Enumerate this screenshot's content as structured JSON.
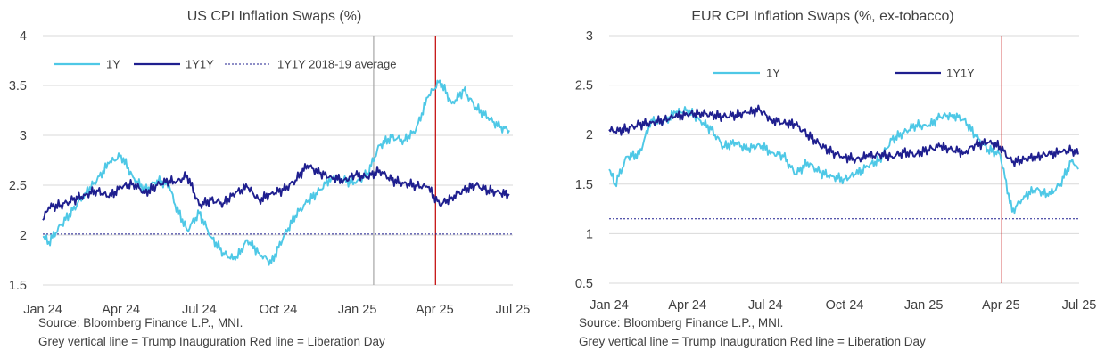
{
  "chart_data": [
    {
      "type": "line",
      "title": "US CPI Inflation Swaps (%)",
      "x_tick_labels": [
        "Jan 24",
        "Apr 24",
        "Jul 24",
        "Oct 24",
        "Jan 25",
        "Apr 25",
        "Jul 25"
      ],
      "y_tick_labels": [
        "1.5",
        "2",
        "2.5",
        "3",
        "3.5",
        "4"
      ],
      "ylim": [
        1.5,
        4
      ],
      "grid": "horizontal",
      "legend_position": "top-left",
      "vertical_lines": [
        {
          "date": "2025-01-20",
          "color": "#a6a6a6"
        },
        {
          "date": "2025-04-02",
          "color": "#c00000"
        }
      ],
      "horizontal_lines": [
        {
          "name": "1Y1Y 2018-19 average",
          "value": 2.01,
          "color": "#1f1f8f",
          "style": "dotted"
        }
      ],
      "series": [
        {
          "name": "1Y",
          "color": "#4ec8e6",
          "dates": [
            "2024-01-01",
            "2024-01-08",
            "2024-01-22",
            "2024-02-05",
            "2024-02-19",
            "2024-03-04",
            "2024-03-18",
            "2024-04-01",
            "2024-04-15",
            "2024-04-29",
            "2024-05-13",
            "2024-05-27",
            "2024-06-03",
            "2024-06-17",
            "2024-07-01",
            "2024-07-15",
            "2024-07-29",
            "2024-08-12",
            "2024-08-26",
            "2024-09-09",
            "2024-09-23",
            "2024-10-07",
            "2024-10-21",
            "2024-11-04",
            "2024-11-18",
            "2024-12-02",
            "2024-12-16",
            "2024-12-30",
            "2025-01-13",
            "2025-01-27",
            "2025-02-10",
            "2025-02-24",
            "2025-03-10",
            "2025-03-24",
            "2025-04-07",
            "2025-04-21",
            "2025-05-05",
            "2025-05-19",
            "2025-06-02",
            "2025-06-16",
            "2025-06-27"
          ],
          "values": [
            1.98,
            1.93,
            2.1,
            2.25,
            2.42,
            2.55,
            2.72,
            2.8,
            2.58,
            2.45,
            2.55,
            2.5,
            2.3,
            2.05,
            2.22,
            1.98,
            1.82,
            1.75,
            1.95,
            1.82,
            1.72,
            1.98,
            2.2,
            2.33,
            2.45,
            2.58,
            2.55,
            2.52,
            2.62,
            2.9,
            2.98,
            2.95,
            3.05,
            3.38,
            3.55,
            3.32,
            3.45,
            3.28,
            3.18,
            3.08,
            3.05
          ]
        },
        {
          "name": "1Y1Y",
          "color": "#1f1f8f",
          "dates": [
            "2024-01-01",
            "2024-01-08",
            "2024-01-22",
            "2024-02-05",
            "2024-02-19",
            "2024-03-04",
            "2024-03-18",
            "2024-04-01",
            "2024-04-15",
            "2024-04-29",
            "2024-05-13",
            "2024-05-27",
            "2024-06-03",
            "2024-06-17",
            "2024-07-01",
            "2024-07-15",
            "2024-07-29",
            "2024-08-12",
            "2024-08-26",
            "2024-09-09",
            "2024-09-23",
            "2024-10-07",
            "2024-10-21",
            "2024-11-04",
            "2024-11-18",
            "2024-12-02",
            "2024-12-16",
            "2024-12-30",
            "2025-01-13",
            "2025-01-27",
            "2025-02-10",
            "2025-02-24",
            "2025-03-10",
            "2025-03-24",
            "2025-04-07",
            "2025-04-21",
            "2025-05-05",
            "2025-05-19",
            "2025-06-02",
            "2025-06-16",
            "2025-06-27"
          ],
          "values": [
            2.15,
            2.28,
            2.3,
            2.35,
            2.4,
            2.45,
            2.38,
            2.48,
            2.52,
            2.42,
            2.5,
            2.55,
            2.52,
            2.6,
            2.3,
            2.35,
            2.32,
            2.42,
            2.48,
            2.35,
            2.42,
            2.45,
            2.55,
            2.7,
            2.62,
            2.58,
            2.55,
            2.6,
            2.58,
            2.65,
            2.55,
            2.52,
            2.5,
            2.48,
            2.3,
            2.38,
            2.45,
            2.5,
            2.45,
            2.42,
            2.4
          ]
        }
      ]
    },
    {
      "type": "line",
      "title": "EUR CPI Inflation Swaps (%, ex-tobacco)",
      "x_tick_labels": [
        "Jan 24",
        "Apr 24",
        "Jul 24",
        "Oct 24",
        "Jan 25",
        "Apr 25",
        "Jul 25"
      ],
      "y_tick_labels": [
        "0.5",
        "1",
        "1.5",
        "2",
        "2.5",
        "3"
      ],
      "ylim": [
        0.5,
        3
      ],
      "grid": "horizontal",
      "legend_position": "top",
      "vertical_lines": [
        {
          "date": "2025-04-02",
          "color": "#c00000"
        }
      ],
      "horizontal_lines": [
        {
          "value": 1.15,
          "color": "#1f1f8f",
          "style": "dotted"
        }
      ],
      "series": [
        {
          "name": "1Y",
          "color": "#4ec8e6",
          "dates": [
            "2024-01-01",
            "2024-01-08",
            "2024-01-22",
            "2024-02-05",
            "2024-02-19",
            "2024-03-04",
            "2024-03-18",
            "2024-04-01",
            "2024-04-15",
            "2024-04-29",
            "2024-05-13",
            "2024-05-27",
            "2024-06-10",
            "2024-06-24",
            "2024-07-08",
            "2024-07-22",
            "2024-08-05",
            "2024-08-19",
            "2024-09-02",
            "2024-09-16",
            "2024-09-30",
            "2024-10-14",
            "2024-10-28",
            "2024-11-11",
            "2024-11-25",
            "2024-12-09",
            "2024-12-23",
            "2025-01-06",
            "2025-01-20",
            "2025-02-03",
            "2025-02-17",
            "2025-03-03",
            "2025-03-17",
            "2025-03-31",
            "2025-04-14",
            "2025-04-28",
            "2025-05-12",
            "2025-05-26",
            "2025-06-09",
            "2025-06-23",
            "2025-06-30"
          ],
          "values": [
            1.65,
            1.5,
            1.78,
            1.8,
            2.15,
            2.12,
            2.22,
            2.25,
            2.15,
            2.05,
            1.88,
            1.92,
            1.85,
            1.9,
            1.82,
            1.78,
            1.6,
            1.72,
            1.62,
            1.58,
            1.55,
            1.6,
            1.68,
            1.75,
            1.95,
            2.02,
            2.1,
            2.08,
            2.18,
            2.2,
            2.15,
            1.98,
            1.85,
            1.8,
            1.22,
            1.38,
            1.45,
            1.38,
            1.5,
            1.75,
            1.65
          ]
        },
        {
          "name": "1Y1Y",
          "color": "#1f1f8f",
          "dates": [
            "2024-01-01",
            "2024-01-08",
            "2024-01-22",
            "2024-02-05",
            "2024-02-19",
            "2024-03-04",
            "2024-03-18",
            "2024-04-01",
            "2024-04-15",
            "2024-04-29",
            "2024-05-13",
            "2024-05-27",
            "2024-06-10",
            "2024-06-24",
            "2024-07-08",
            "2024-07-22",
            "2024-08-05",
            "2024-08-19",
            "2024-09-02",
            "2024-09-16",
            "2024-09-30",
            "2024-10-14",
            "2024-10-28",
            "2024-11-11",
            "2024-11-25",
            "2024-12-09",
            "2024-12-23",
            "2025-01-06",
            "2025-01-20",
            "2025-02-03",
            "2025-02-17",
            "2025-03-03",
            "2025-03-17",
            "2025-03-31",
            "2025-04-14",
            "2025-04-28",
            "2025-05-12",
            "2025-05-26",
            "2025-06-09",
            "2025-06-23",
            "2025-06-30"
          ],
          "values": [
            2.05,
            2.03,
            2.06,
            2.1,
            2.12,
            2.15,
            2.18,
            2.2,
            2.22,
            2.2,
            2.18,
            2.2,
            2.22,
            2.25,
            2.15,
            2.12,
            2.1,
            2.0,
            1.9,
            1.82,
            1.78,
            1.75,
            1.78,
            1.8,
            1.78,
            1.82,
            1.8,
            1.85,
            1.88,
            1.85,
            1.82,
            1.9,
            1.92,
            1.88,
            1.72,
            1.75,
            1.78,
            1.8,
            1.82,
            1.85,
            1.8
          ]
        }
      ]
    }
  ],
  "sources": [
    {
      "line1": "Source: Bloomberg Finance L.P., MNI.",
      "line2": "Grey vertical line = Trump Inauguration  Red line = Liberation Day"
    },
    {
      "line1": "Source: Bloomberg Finance L.P., MNI.",
      "line2": "Grey vertical line = Trump Inauguration  Red line = Liberation Day"
    }
  ]
}
